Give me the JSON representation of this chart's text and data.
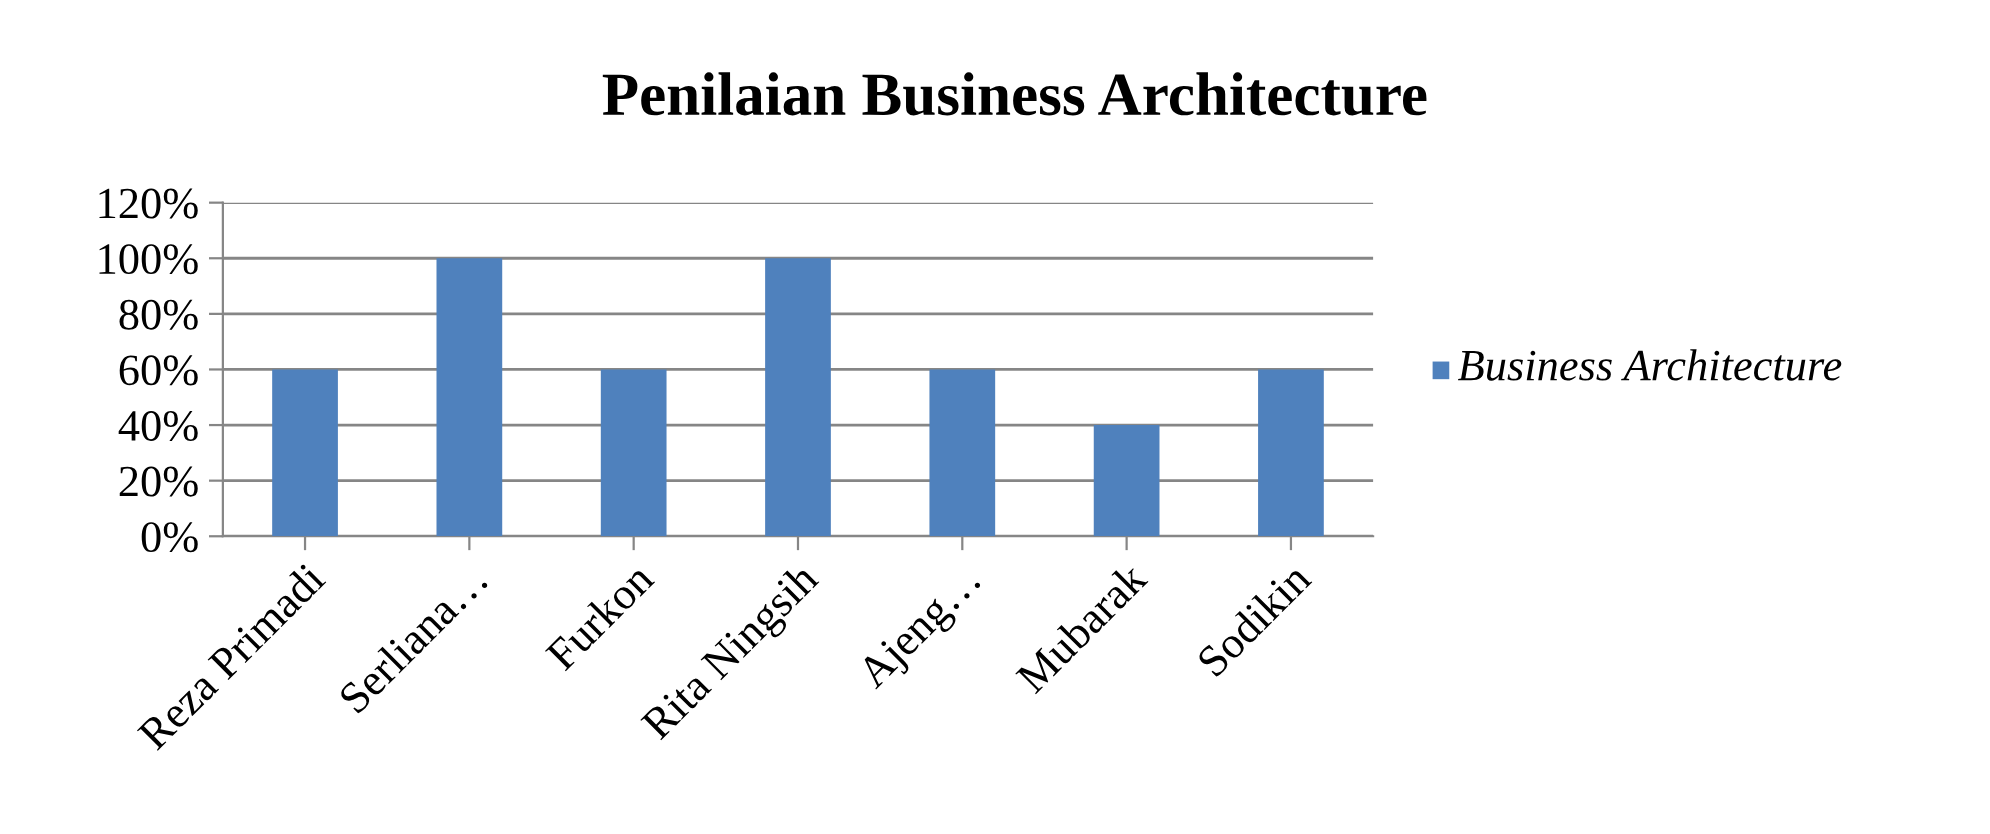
{
  "chart_data": {
    "type": "bar",
    "title": "Penilaian Business Architecture",
    "categories": [
      "Reza Primadi",
      "Serliana…",
      "Furkon",
      "Rita Ningsih",
      "Ajeng…",
      "Mubarak",
      "Sodikin"
    ],
    "series": [
      {
        "name": "Business Architecture",
        "color": "#4f81bd",
        "values": [
          60,
          100,
          60,
          100,
          60,
          40,
          60
        ]
      }
    ],
    "ylim": [
      0,
      120
    ],
    "yticks": [
      {
        "value": 0,
        "label": "0%"
      },
      {
        "value": 20,
        "label": "20%"
      },
      {
        "value": 40,
        "label": "40%"
      },
      {
        "value": 60,
        "label": "60%"
      },
      {
        "value": 80,
        "label": "80%"
      },
      {
        "value": 100,
        "label": "100%"
      },
      {
        "value": 120,
        "label": "120%"
      }
    ],
    "grid": "y",
    "legend": "right"
  }
}
